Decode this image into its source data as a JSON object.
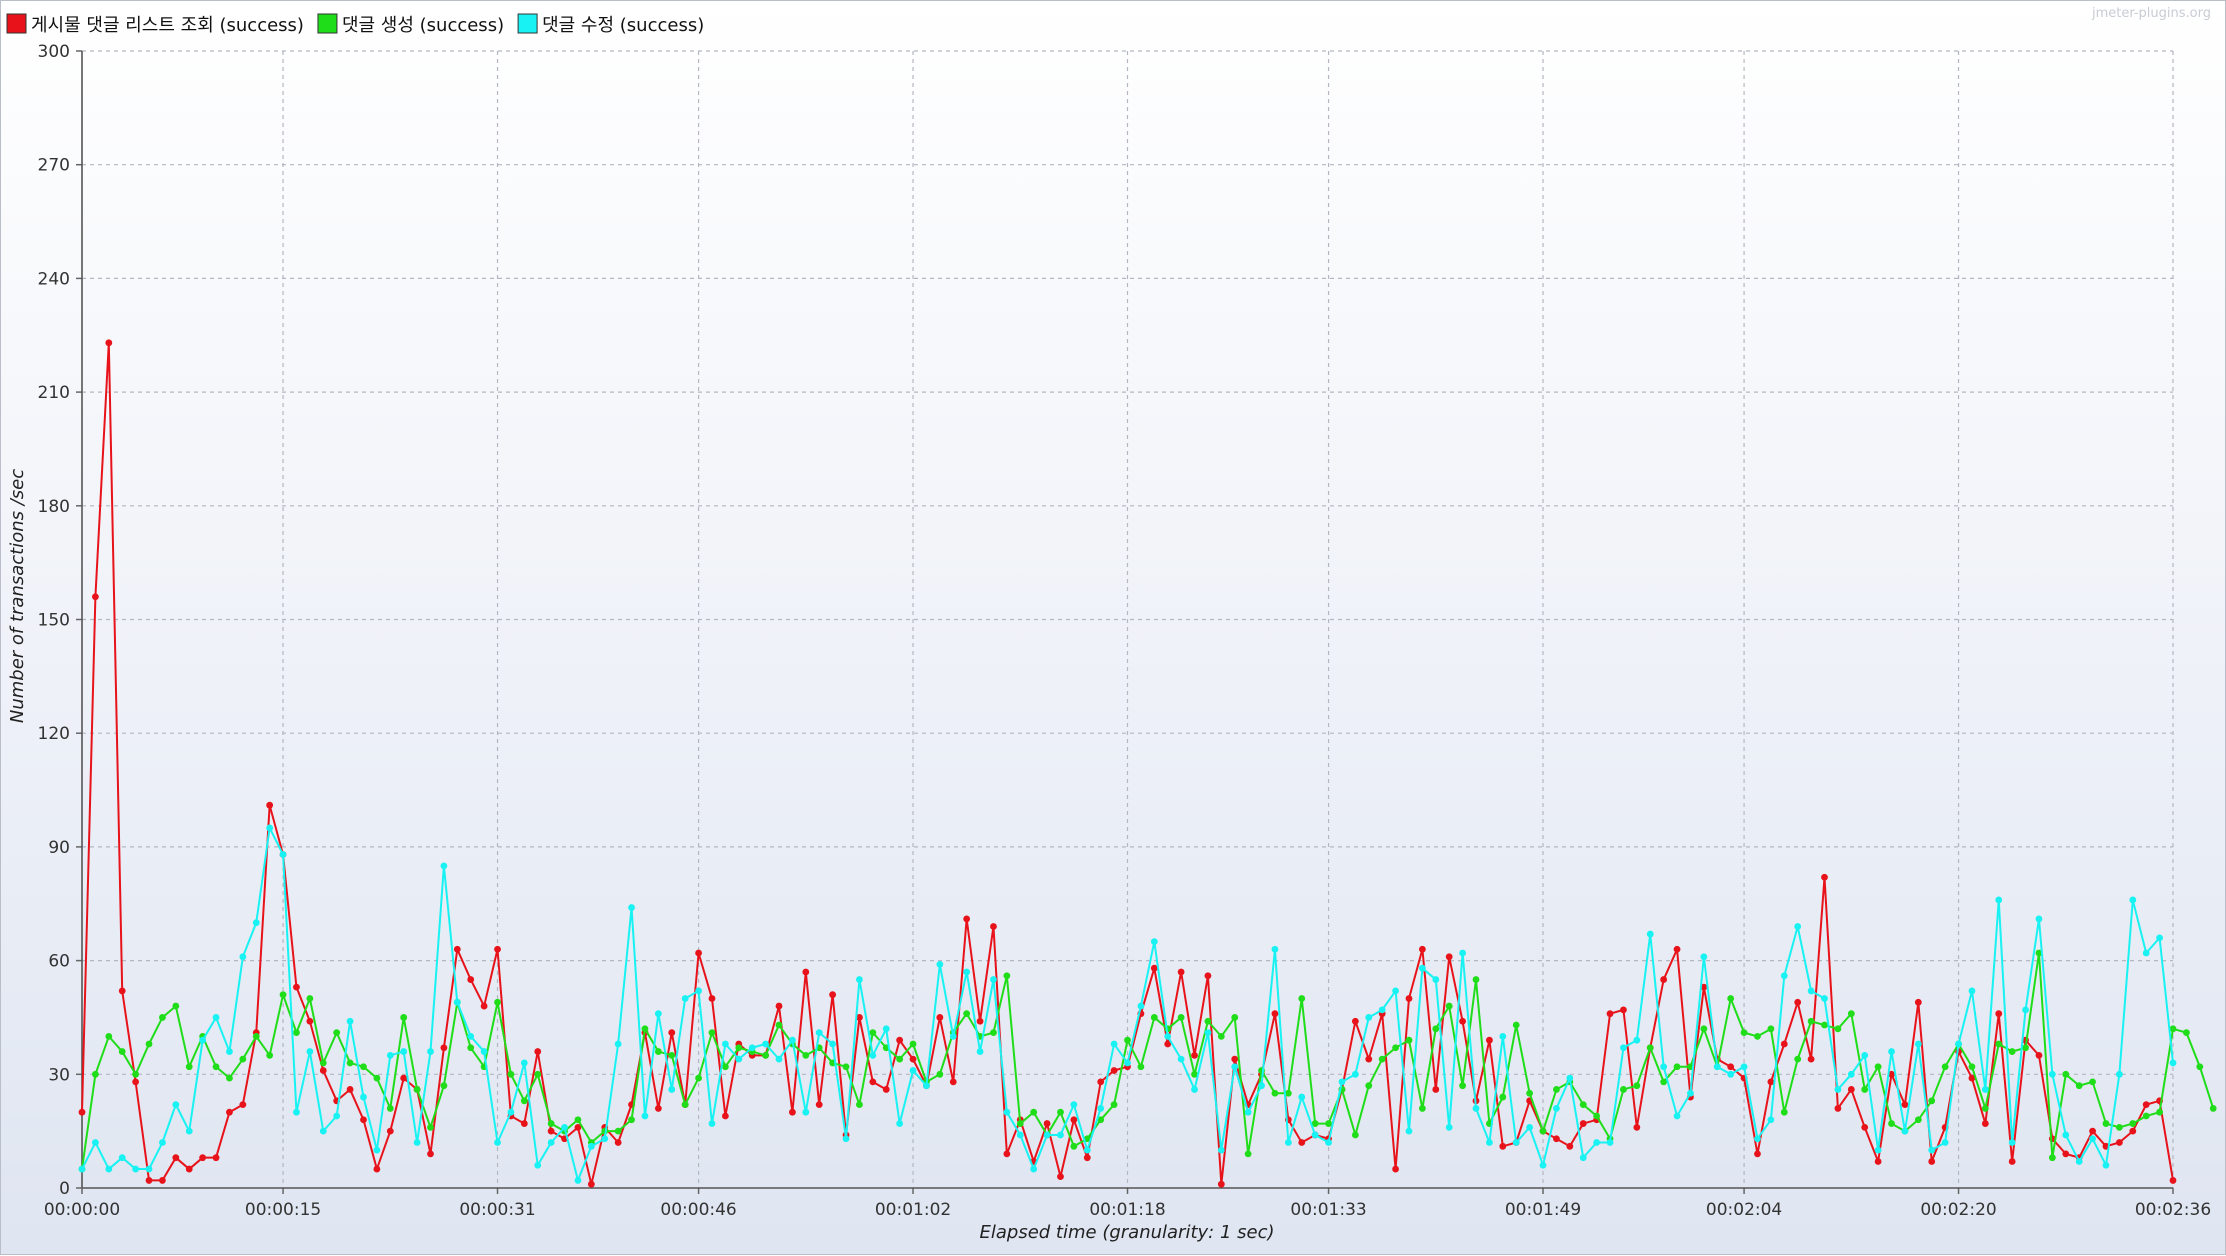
{
  "watermark": "jmeter-plugins.org",
  "chart_data": {
    "type": "line",
    "xlabel": "Elapsed time (granularity: 1 sec)",
    "ylabel": "Number of transactions /sec",
    "ylim": [
      0,
      300
    ],
    "xlim": [
      "00:00:00",
      "00:02:36"
    ],
    "y_ticks": [
      0,
      30,
      60,
      90,
      120,
      150,
      180,
      210,
      240,
      270,
      300
    ],
    "x_tick_labels": [
      "00:00:00",
      "00:00:15",
      "00:00:31",
      "00:00:46",
      "00:01:02",
      "00:01:18",
      "00:01:33",
      "00:01:49",
      "00:02:04",
      "00:02:20",
      "00:02:36"
    ],
    "grid": true,
    "legend_position": "top-left",
    "series": [
      {
        "name": "게시물 댓글 리스트 조회 (success)",
        "color": "#e8131a",
        "values": [
          20,
          156,
          223,
          52,
          28,
          2,
          2,
          8,
          5,
          8,
          8,
          20,
          22,
          41,
          101,
          88,
          53,
          44,
          31,
          23,
          26,
          18,
          5,
          15,
          29,
          26,
          9,
          37,
          63,
          55,
          48,
          63,
          19,
          17,
          36,
          15,
          13,
          16,
          1,
          16,
          12,
          22,
          41,
          21,
          41,
          22,
          62,
          50,
          19,
          38,
          35,
          35,
          48,
          20,
          57,
          22,
          51,
          14,
          45,
          28,
          26,
          39,
          34,
          27,
          45,
          28,
          71,
          44,
          69,
          9,
          18,
          7,
          17,
          3,
          18,
          8,
          28,
          31,
          32,
          46,
          58,
          38,
          57,
          35,
          56,
          1,
          34,
          22,
          30,
          46,
          18,
          12,
          14,
          13,
          26,
          44,
          34,
          46,
          5,
          50,
          63,
          26,
          61,
          44,
          23,
          39,
          11,
          12,
          23,
          15,
          13,
          11,
          17,
          18,
          46,
          47,
          16,
          37,
          55,
          63,
          24,
          53,
          34,
          32,
          29,
          9,
          28,
          38,
          49,
          34,
          82,
          21,
          26,
          16,
          7,
          30,
          22,
          49,
          7,
          16,
          36,
          29,
          17,
          46,
          7,
          39,
          35,
          13,
          9,
          8,
          15,
          11,
          12,
          15,
          22,
          23,
          2
        ]
      },
      {
        "name": "댓글 생성 (success)",
        "color": "#1fdd18",
        "values": [
          5,
          30,
          40,
          36,
          30,
          38,
          45,
          48,
          32,
          40,
          32,
          29,
          34,
          40,
          35,
          51,
          41,
          50,
          33,
          41,
          33,
          32,
          29,
          21,
          45,
          26,
          16,
          27,
          49,
          37,
          32,
          49,
          30,
          23,
          30,
          17,
          15,
          18,
          12,
          15,
          15,
          18,
          42,
          36,
          35,
          22,
          29,
          41,
          32,
          37,
          36,
          35,
          43,
          38,
          35,
          37,
          33,
          32,
          22,
          41,
          37,
          34,
          38,
          28,
          30,
          41,
          46,
          40,
          41,
          56,
          17,
          20,
          14,
          20,
          11,
          13,
          18,
          22,
          39,
          32,
          45,
          42,
          45,
          30,
          44,
          40,
          45,
          9,
          31,
          25,
          25,
          50,
          17,
          17,
          26,
          14,
          27,
          34,
          37,
          39,
          21,
          42,
          48,
          27,
          55,
          17,
          24,
          43,
          25,
          15,
          26,
          28,
          22,
          19,
          13,
          26,
          27,
          37,
          28,
          32,
          32,
          42,
          32,
          50,
          41,
          40,
          42,
          20,
          34,
          44,
          43,
          42,
          46,
          26,
          32,
          17,
          15,
          18,
          23,
          32,
          38,
          32,
          21,
          38,
          36,
          37,
          62,
          8,
          30,
          27,
          28,
          17,
          16,
          17,
          19,
          20,
          42,
          41,
          32,
          21
        ]
      },
      {
        "name": "댓글 수정 (success)",
        "color": "#18f2f2",
        "values": [
          5,
          12,
          5,
          8,
          5,
          5,
          12,
          22,
          15,
          39,
          45,
          36,
          61,
          70,
          95,
          88,
          20,
          36,
          15,
          19,
          44,
          24,
          10,
          35,
          36,
          12,
          36,
          85,
          49,
          40,
          36,
          12,
          20,
          33,
          6,
          12,
          16,
          2,
          11,
          13,
          38,
          74,
          19,
          46,
          26,
          50,
          52,
          17,
          38,
          34,
          37,
          38,
          34,
          39,
          20,
          41,
          38,
          13,
          55,
          35,
          42,
          17,
          31,
          27,
          59,
          40,
          57,
          36,
          55,
          20,
          14,
          5,
          14,
          14,
          22,
          10,
          21,
          38,
          33,
          48,
          65,
          40,
          34,
          26,
          41,
          10,
          32,
          20,
          27,
          63,
          12,
          24,
          14,
          12,
          28,
          30,
          45,
          47,
          52,
          15,
          58,
          55,
          16,
          62,
          21,
          12,
          40,
          12,
          16,
          6,
          21,
          29,
          8,
          12,
          12,
          37,
          39,
          67,
          32,
          19,
          25,
          61,
          32,
          30,
          32,
          13,
          18,
          56,
          69,
          52,
          50,
          26,
          30,
          35,
          10,
          36,
          15,
          38,
          10,
          12,
          38,
          52,
          26,
          76,
          12,
          47,
          71,
          30,
          14,
          7,
          13,
          6,
          30,
          76,
          62,
          66,
          33
        ]
      }
    ]
  }
}
